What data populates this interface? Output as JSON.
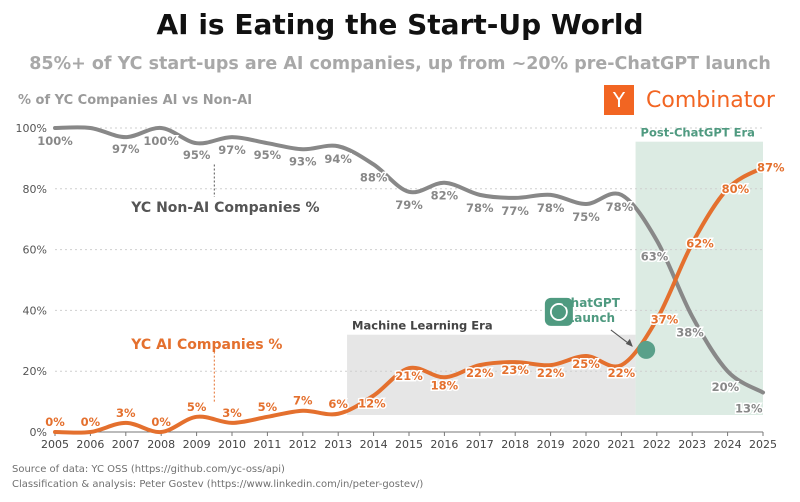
{
  "title": "AI is Eating the Start-Up World",
  "subtitle": "85%+ of YC start-ups are AI companies, up from ~20% pre-ChatGPT launch",
  "logo": {
    "mark": "Y",
    "text": "Combinator",
    "color": "#f26522"
  },
  "footer": {
    "source": "Source of data: YC OSS (https://github.com/yc-oss/api)",
    "analysis": "Classification & analysis: Peter Gostev (https://www.linkedin.com/in/peter-gostev/)"
  },
  "chart_data": {
    "type": "line",
    "ylabel": "% of YC Companies AI vs Non-AI",
    "xlim": [
      2005,
      2025
    ],
    "ylim": [
      0,
      100
    ],
    "x_ticks": [
      "2005",
      "2006",
      "2007",
      "2008",
      "2009",
      "2010",
      "2011",
      "2012",
      "2013",
      "2014",
      "2015",
      "2016",
      "2017",
      "2018",
      "2019",
      "2020",
      "2021",
      "2022",
      "2023",
      "2024",
      "2025"
    ],
    "y_ticks": [
      {
        "value": 0,
        "label": "0%"
      },
      {
        "value": 20,
        "label": "20%"
      },
      {
        "value": 40,
        "label": "40%"
      },
      {
        "value": 60,
        "label": "60%"
      },
      {
        "value": 80,
        "label": "80%"
      },
      {
        "value": 100,
        "label": "100%"
      }
    ],
    "grid": true,
    "series": [
      {
        "name": "YC Non-AI Companies %",
        "color": "#888888",
        "points": [
          {
            "x": 2005,
            "y": 100,
            "label": "100%"
          },
          {
            "x": 2006,
            "y": 100
          },
          {
            "x": 2007,
            "y": 97,
            "label": "97%"
          },
          {
            "x": 2008,
            "y": 100,
            "label": "100%"
          },
          {
            "x": 2009,
            "y": 95,
            "label": "95%"
          },
          {
            "x": 2010,
            "y": 97,
            "label": "97%"
          },
          {
            "x": 2011,
            "y": 95,
            "label": "95%"
          },
          {
            "x": 2012,
            "y": 93,
            "label": "93%"
          },
          {
            "x": 2013,
            "y": 94,
            "label": "94%"
          },
          {
            "x": 2014,
            "y": 88,
            "label": "88%"
          },
          {
            "x": 2015,
            "y": 79,
            "label": "79%"
          },
          {
            "x": 2016,
            "y": 82,
            "label": "82%"
          },
          {
            "x": 2017,
            "y": 78,
            "label": "78%"
          },
          {
            "x": 2018,
            "y": 77,
            "label": "77%"
          },
          {
            "x": 2019,
            "y": 78,
            "label": "78%"
          },
          {
            "x": 2020,
            "y": 75,
            "label": "75%"
          },
          {
            "x": 2021,
            "y": 78,
            "label": "78%"
          },
          {
            "x": 2022,
            "y": 63,
            "label": "63%"
          },
          {
            "x": 2023,
            "y": 38,
            "label": "38%"
          },
          {
            "x": 2024,
            "y": 20,
            "label": "20%"
          },
          {
            "x": 2025,
            "y": 13,
            "label": "13%"
          }
        ]
      },
      {
        "name": "YC AI Companies %",
        "color": "#e4702e",
        "points": [
          {
            "x": 2005,
            "y": 0,
            "label": "0%"
          },
          {
            "x": 2006,
            "y": 0,
            "label": "0%"
          },
          {
            "x": 2007,
            "y": 3,
            "label": "3%"
          },
          {
            "x": 2008,
            "y": 0,
            "label": "0%"
          },
          {
            "x": 2009,
            "y": 5,
            "label": "5%"
          },
          {
            "x": 2010,
            "y": 3,
            "label": "3%"
          },
          {
            "x": 2011,
            "y": 5,
            "label": "5%"
          },
          {
            "x": 2012,
            "y": 7,
            "label": "7%"
          },
          {
            "x": 2013,
            "y": 6,
            "label": "6%"
          },
          {
            "x": 2014,
            "y": 12,
            "label": "12%"
          },
          {
            "x": 2015,
            "y": 21,
            "label": "21%"
          },
          {
            "x": 2016,
            "y": 18,
            "label": "18%"
          },
          {
            "x": 2017,
            "y": 22,
            "label": "22%"
          },
          {
            "x": 2018,
            "y": 23,
            "label": "23%"
          },
          {
            "x": 2019,
            "y": 22,
            "label": "22%"
          },
          {
            "x": 2020,
            "y": 25,
            "label": "25%"
          },
          {
            "x": 2021,
            "y": 22,
            "label": "22%"
          },
          {
            "x": 2022,
            "y": 37,
            "label": "37%"
          },
          {
            "x": 2023,
            "y": 62,
            "label": "62%"
          },
          {
            "x": 2024,
            "y": 80,
            "label": "80%"
          },
          {
            "x": 2025,
            "y": 87,
            "label": "87%"
          }
        ]
      }
    ],
    "annotations": [
      {
        "text": "YC Non-AI Companies %",
        "x": 2009.5,
        "y": 74,
        "pointer_to_y": 88,
        "color": "#555555"
      },
      {
        "text": "YC AI Companies %",
        "x": 2009.5,
        "y": 29,
        "pointer_to_y": 10,
        "color": "#e4702e"
      },
      {
        "text": "ChatGPT Launch",
        "x": 2021.55,
        "y": 27,
        "color": "#4f9a80"
      }
    ],
    "regions": [
      {
        "label": "Machine Learning Era",
        "x_start": 2013.25,
        "x_end": 2021.4,
        "y_top": 32,
        "color": "#e6e6e6",
        "label_color": "#444444"
      },
      {
        "label": "Post-ChatGPT Era",
        "x_start": 2021.4,
        "x_end": 2025,
        "y_top": 95.5,
        "color": "#dcebe3",
        "label_color": "#4f9a80"
      }
    ],
    "marker": {
      "x": 2021.7,
      "y": 27,
      "color": "#5aa08a"
    }
  }
}
